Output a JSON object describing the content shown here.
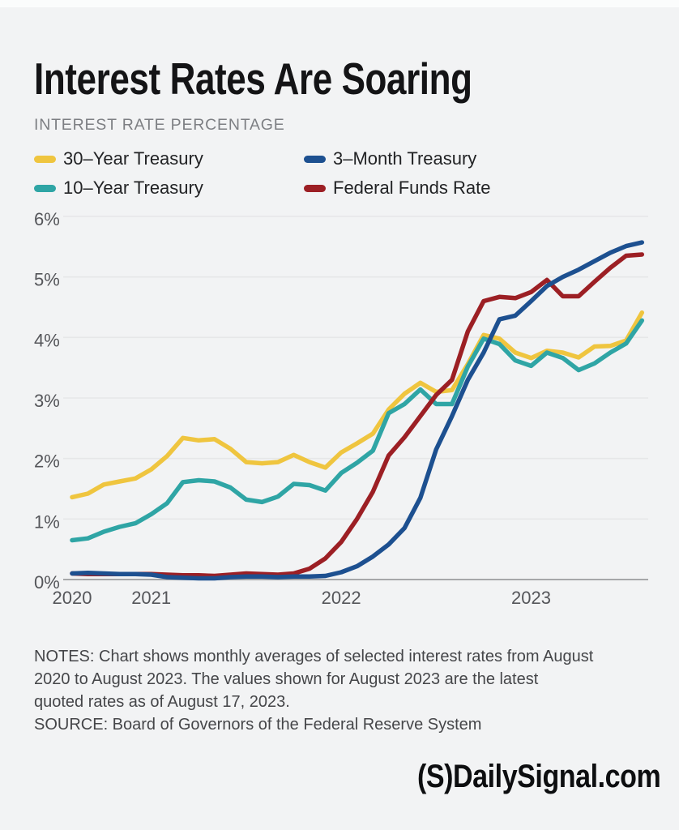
{
  "chart_data": {
    "type": "line",
    "title": "Interest Rates Are Soaring",
    "ylabel": "INTEREST RATE PERCENTAGE",
    "xlabel": "",
    "ylim": [
      0,
      6
    ],
    "grid": "horizontal",
    "legend_position": "top-left-two-columns",
    "yticks": [
      "0%",
      "1%",
      "2%",
      "3%",
      "4%",
      "5%",
      "6%"
    ],
    "xticks": [
      {
        "label": "2020",
        "month_index": 0
      },
      {
        "label": "2021",
        "month_index": 5
      },
      {
        "label": "2022",
        "month_index": 17
      },
      {
        "label": "2023",
        "month_index": 29
      }
    ],
    "months": [
      "Aug 2020",
      "Sep 2020",
      "Oct 2020",
      "Nov 2020",
      "Dec 2020",
      "Jan 2021",
      "Feb 2021",
      "Mar 2021",
      "Apr 2021",
      "May 2021",
      "Jun 2021",
      "Jul 2021",
      "Aug 2021",
      "Sep 2021",
      "Oct 2021",
      "Nov 2021",
      "Dec 2021",
      "Jan 2022",
      "Feb 2022",
      "Mar 2022",
      "Apr 2022",
      "May 2022",
      "Jun 2022",
      "Jul 2022",
      "Aug 2022",
      "Sep 2022",
      "Oct 2022",
      "Nov 2022",
      "Dec 2022",
      "Jan 2023",
      "Feb 2023",
      "Mar 2023",
      "Apr 2023",
      "May 2023",
      "Jun 2023",
      "Jul 2023",
      "Aug 2023"
    ],
    "series": [
      {
        "name": "30–Year Treasury",
        "color": "#EFC53F",
        "values": [
          1.36,
          1.42,
          1.57,
          1.62,
          1.67,
          1.82,
          2.04,
          2.34,
          2.3,
          2.32,
          2.16,
          1.94,
          1.92,
          1.94,
          2.06,
          1.94,
          1.85,
          2.1,
          2.25,
          2.41,
          2.81,
          3.07,
          3.25,
          3.1,
          3.13,
          3.56,
          4.04,
          3.98,
          3.75,
          3.66,
          3.78,
          3.75,
          3.67,
          3.85,
          3.86,
          3.95,
          4.41
        ]
      },
      {
        "name": "10–Year Treasury",
        "color": "#2FA5A5",
        "values": [
          0.65,
          0.68,
          0.79,
          0.87,
          0.93,
          1.08,
          1.26,
          1.61,
          1.64,
          1.62,
          1.52,
          1.32,
          1.28,
          1.37,
          1.58,
          1.56,
          1.47,
          1.76,
          1.93,
          2.13,
          2.75,
          2.9,
          3.14,
          2.9,
          2.9,
          3.52,
          3.98,
          3.89,
          3.62,
          3.53,
          3.75,
          3.66,
          3.46,
          3.57,
          3.75,
          3.9,
          4.28
        ]
      },
      {
        "name": "Federal Funds Rate",
        "color": "#9C1F24",
        "values": [
          0.1,
          0.09,
          0.09,
          0.09,
          0.09,
          0.09,
          0.08,
          0.07,
          0.07,
          0.06,
          0.08,
          0.1,
          0.09,
          0.08,
          0.1,
          0.18,
          0.35,
          0.62,
          1.0,
          1.45,
          2.05,
          2.35,
          2.7,
          3.05,
          3.3,
          4.1,
          4.6,
          4.67,
          4.65,
          4.75,
          4.95,
          4.68,
          4.68,
          4.92,
          5.15,
          5.35,
          5.37
        ]
      },
      {
        "name": "3–Month Treasury",
        "color": "#1D5090",
        "values": [
          0.1,
          0.11,
          0.1,
          0.09,
          0.09,
          0.08,
          0.04,
          0.03,
          0.02,
          0.02,
          0.04,
          0.05,
          0.05,
          0.04,
          0.05,
          0.05,
          0.06,
          0.12,
          0.22,
          0.38,
          0.58,
          0.85,
          1.35,
          2.15,
          2.7,
          3.3,
          3.75,
          4.3,
          4.36,
          4.6,
          4.85,
          5.0,
          5.12,
          5.26,
          5.4,
          5.51,
          5.57
        ]
      }
    ]
  },
  "legend": {
    "items": [
      {
        "label": "30–Year Treasury",
        "color": "#EFC53F"
      },
      {
        "label": "3–Month Treasury",
        "color": "#1D5090"
      },
      {
        "label": "10–Year Treasury",
        "color": "#2FA5A5"
      },
      {
        "label": "Federal Funds Rate",
        "color": "#9C1F24"
      }
    ]
  },
  "notes_lines": [
    "NOTES: Chart shows monthly averages of selected interest rates from August",
    "2020 to August 2023. The values shown for August 2023 are the latest",
    "quoted rates as of August 17, 2023.",
    "SOURCE: Board of Governors of the Federal Reserve System"
  ],
  "logo_text": "(S)DailySignal.com"
}
